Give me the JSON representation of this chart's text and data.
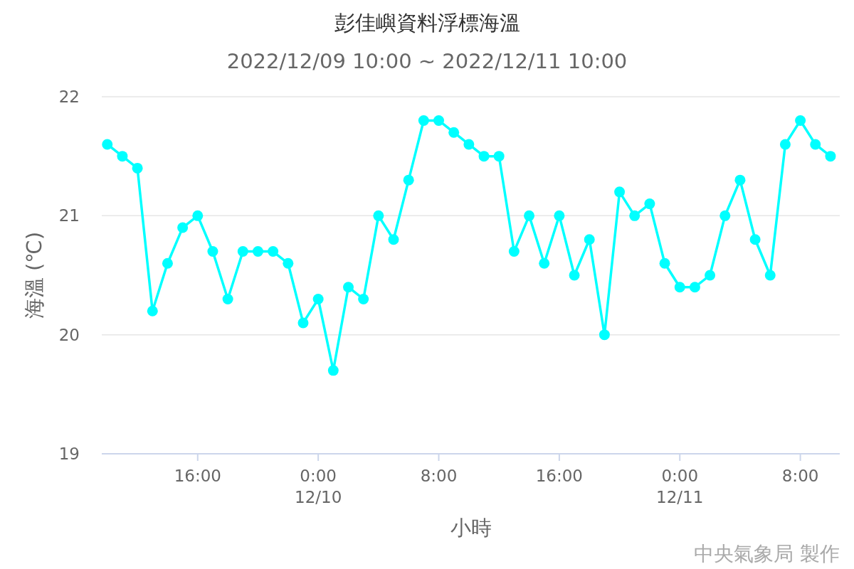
{
  "chart_data": {
    "type": "line",
    "title": "彭佳嶼資料浮標海溫",
    "subtitle": "2022/12/09 10:00 ~ 2022/12/11 10:00",
    "xlabel": "小時",
    "ylabel": "海溫 (℃)",
    "x": [
      "2022-12-09T10:00",
      "2022-12-09T11:00",
      "2022-12-09T12:00",
      "2022-12-09T13:00",
      "2022-12-09T14:00",
      "2022-12-09T15:00",
      "2022-12-09T16:00",
      "2022-12-09T17:00",
      "2022-12-09T18:00",
      "2022-12-09T19:00",
      "2022-12-09T20:00",
      "2022-12-09T21:00",
      "2022-12-09T22:00",
      "2022-12-09T23:00",
      "2022-12-10T00:00",
      "2022-12-10T01:00",
      "2022-12-10T02:00",
      "2022-12-10T03:00",
      "2022-12-10T04:00",
      "2022-12-10T05:00",
      "2022-12-10T06:00",
      "2022-12-10T07:00",
      "2022-12-10T08:00",
      "2022-12-10T09:00",
      "2022-12-10T10:00",
      "2022-12-10T11:00",
      "2022-12-10T12:00",
      "2022-12-10T13:00",
      "2022-12-10T14:00",
      "2022-12-10T15:00",
      "2022-12-10T16:00",
      "2022-12-10T17:00",
      "2022-12-10T18:00",
      "2022-12-10T19:00",
      "2022-12-10T20:00",
      "2022-12-10T21:00",
      "2022-12-10T22:00",
      "2022-12-10T23:00",
      "2022-12-11T00:00",
      "2022-12-11T01:00",
      "2022-12-11T02:00",
      "2022-12-11T03:00",
      "2022-12-11T04:00",
      "2022-12-11T05:00",
      "2022-12-11T06:00",
      "2022-12-11T07:00",
      "2022-12-11T08:00",
      "2022-12-11T09:00",
      "2022-12-11T10:00"
    ],
    "series": [
      {
        "color": "#00ffff",
        "values": [
          21.6,
          21.5,
          21.4,
          20.2,
          20.6,
          20.9,
          21.0,
          20.7,
          20.3,
          20.7,
          20.7,
          20.7,
          20.6,
          20.1,
          20.3,
          19.7,
          20.4,
          20.3,
          21.0,
          20.8,
          21.3,
          21.8,
          21.8,
          21.7,
          21.6,
          21.5,
          21.5,
          20.7,
          21.0,
          20.6,
          21.0,
          20.5,
          20.8,
          20.0,
          21.2,
          21.0,
          21.1,
          20.6,
          20.4,
          20.4,
          20.5,
          21.0,
          21.3,
          20.8,
          20.5,
          21.6,
          21.8,
          21.6,
          21.5
        ]
      }
    ],
    "xlim": [
      "2022-12-09T09:38",
      "2022-12-11T10:37"
    ],
    "xticks": [
      {
        "value": "2022-12-09T16:00",
        "label": "16:00"
      },
      {
        "value": "2022-12-10T00:00",
        "label": "0:00\n12/10"
      },
      {
        "value": "2022-12-10T08:00",
        "label": "8:00"
      },
      {
        "value": "2022-12-10T16:00",
        "label": "16:00"
      },
      {
        "value": "2022-12-11T00:00",
        "label": "0:00\n12/11"
      },
      {
        "value": "2022-12-11T08:00",
        "label": "8:00"
      }
    ],
    "ylim": [
      19,
      22
    ],
    "yticks": [
      19,
      20,
      21,
      22
    ],
    "grid": "y",
    "marker": "circle",
    "line_style": "solid",
    "annotations": [
      "中央氣象局 製作"
    ]
  }
}
